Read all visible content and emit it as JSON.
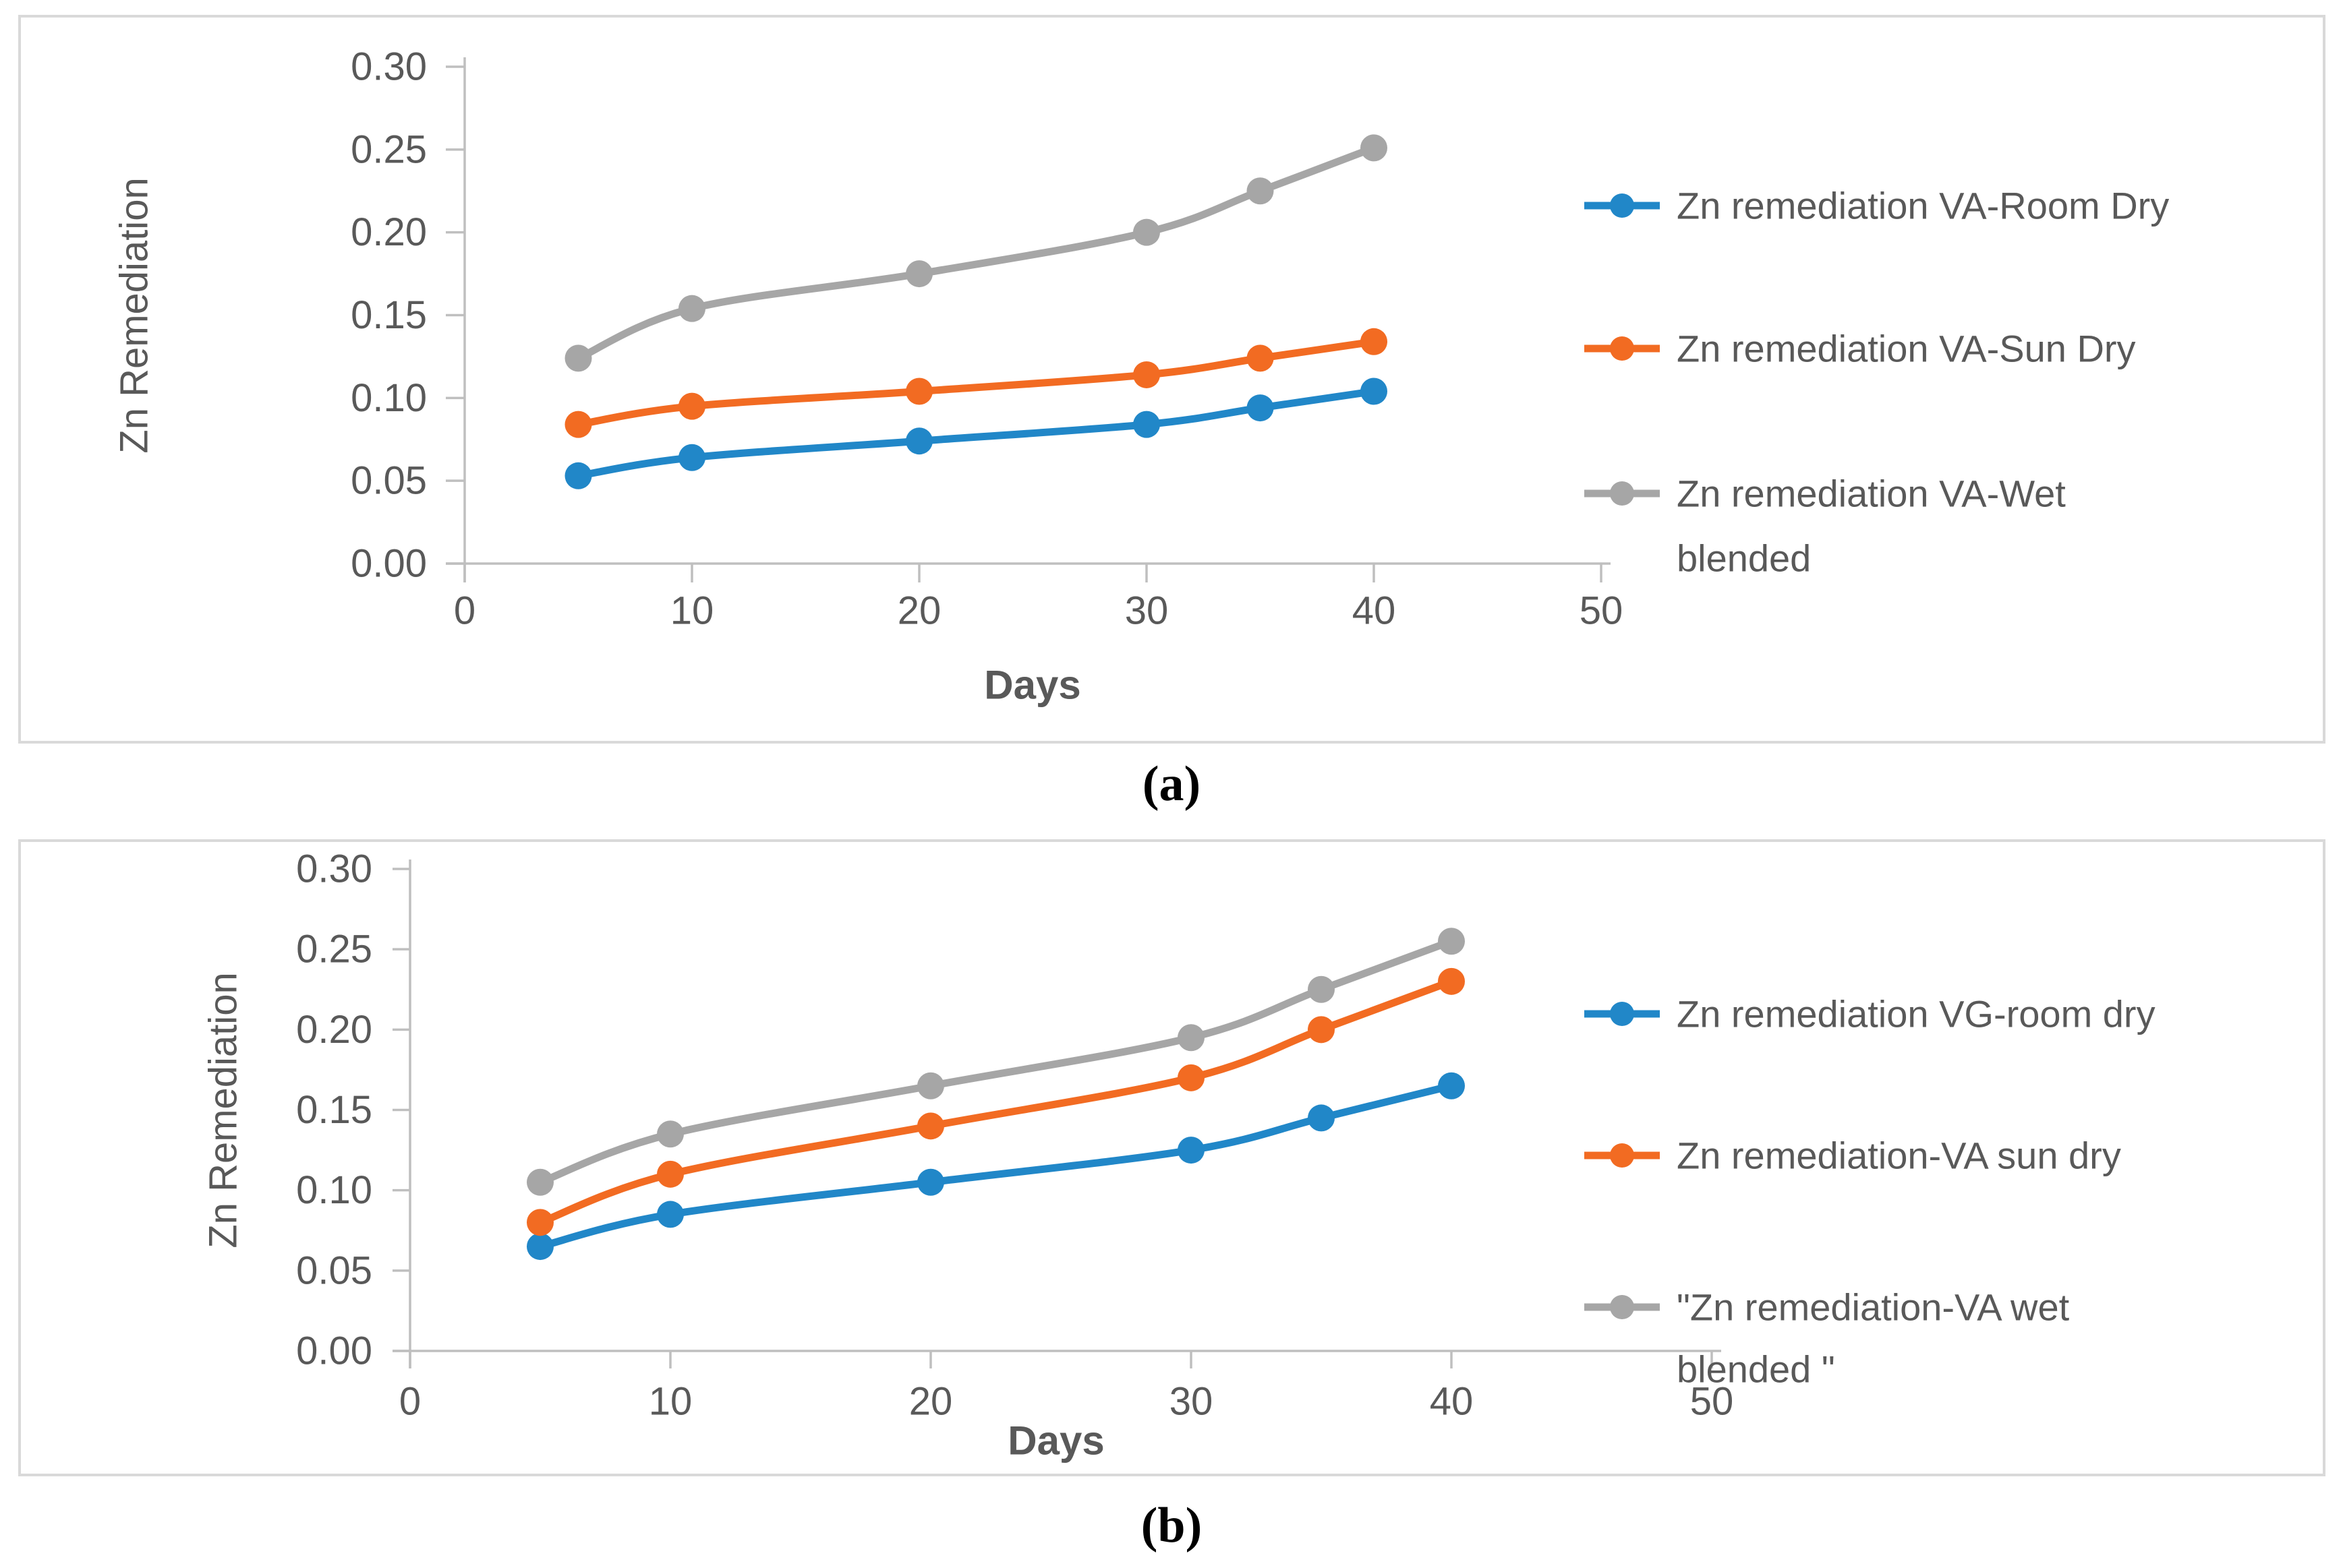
{
  "figure": {
    "background": "#FFFFFF",
    "panel_border_color": "#D9D9D9",
    "text_color": "#595959",
    "axis_color": "#BFBFBF"
  },
  "captions": {
    "a": "(a)",
    "b": "(b)"
  },
  "chart_data": [
    {
      "id": "a",
      "type": "line",
      "title": "",
      "xlabel": "Days",
      "ylabel": "Zn Remediation",
      "xlim": [
        0,
        50
      ],
      "ylim": [
        0,
        0.3
      ],
      "x_ticks": [
        0,
        10,
        20,
        30,
        40,
        50
      ],
      "y_tick_labels": [
        "0.30",
        "0.25",
        "0.20",
        "0.15",
        "0.10",
        "0.05",
        "0.00"
      ],
      "grid": false,
      "legend_position": "right",
      "x": [
        5,
        10,
        20,
        30,
        35,
        40
      ],
      "series": [
        {
          "name": "Zn remediation VA-Room Dry",
          "color": "#2187C8",
          "marker": "circle",
          "values": [
            0.053,
            0.064,
            0.074,
            0.084,
            0.094,
            0.104
          ],
          "legend_lines": [
            "Zn remediation VA-Room Dry"
          ]
        },
        {
          "name": "Zn remediation VA-Sun Dry",
          "color": "#F26B22",
          "marker": "circle",
          "values": [
            0.084,
            0.095,
            0.104,
            0.114,
            0.124,
            0.134
          ],
          "legend_lines": [
            "Zn remediation VA-Sun Dry"
          ]
        },
        {
          "name": "Zn remediation VA-Wet blended",
          "color": "#A6A6A6",
          "marker": "circle",
          "values": [
            0.124,
            0.154,
            0.175,
            0.2,
            0.225,
            0.251
          ],
          "legend_lines": [
            "Zn remediation VA-Wet",
            "blended"
          ]
        }
      ]
    },
    {
      "id": "b",
      "type": "line",
      "title": "",
      "xlabel": "Days",
      "ylabel": "Zn Remediation",
      "xlim": [
        0,
        50
      ],
      "ylim": [
        0,
        0.3
      ],
      "x_ticks": [
        0,
        10,
        20,
        30,
        40,
        50
      ],
      "y_tick_labels": [
        "0.30",
        "0.25",
        "0.20",
        "0.15",
        "0.10",
        "0.05",
        "0.00"
      ],
      "grid": false,
      "legend_position": "right",
      "x": [
        5,
        10,
        20,
        30,
        35,
        40
      ],
      "series": [
        {
          "name": "Zn remediation VG-room dry",
          "color": "#2187C8",
          "marker": "circle",
          "values": [
            0.065,
            0.085,
            0.105,
            0.125,
            0.145,
            0.165
          ],
          "legend_lines": [
            "Zn remediation VG-room dry"
          ]
        },
        {
          "name": "Zn remediation-VA sun dry",
          "color": "#F26B22",
          "marker": "circle",
          "values": [
            0.08,
            0.11,
            0.14,
            0.17,
            0.2,
            0.23
          ],
          "legend_lines": [
            "Zn remediation-VA sun dry"
          ]
        },
        {
          "name": "\"Zn remediation-VA wet blended  \"",
          "color": "#A6A6A6",
          "marker": "circle",
          "values": [
            0.105,
            0.135,
            0.165,
            0.195,
            0.225,
            0.255
          ],
          "legend_lines": [
            "\"Zn remediation-VA wet",
            "blended  \""
          ]
        }
      ]
    }
  ]
}
